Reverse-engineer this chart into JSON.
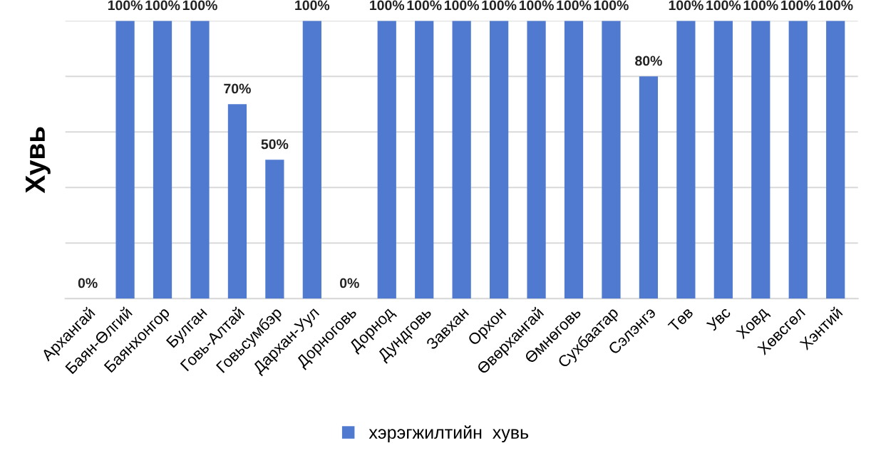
{
  "chart_data": {
    "type": "bar",
    "ylabel": "Хувь",
    "categories": [
      "Архангай",
      "Баян-Өлгий",
      "Баянхонгор",
      "Булган",
      "Говь-Алтай",
      "Говьсумбэр",
      "Дархан-Уул",
      "Дорноговь",
      "Дорнод",
      "Дундговь",
      "Завхан",
      "Орхон",
      "Өвөрхангай",
      "Өмнөговь",
      "Сухбаатар",
      "Сэлэнгэ",
      "Төв",
      "Увс",
      "Ховд",
      "Хөвсгөл",
      "Хэнтий"
    ],
    "series": [
      {
        "name": "хэрэгжилтийн  хувь",
        "color": "#4f7ad0",
        "values": [
          0,
          100,
          100,
          100,
          70,
          50,
          100,
          0,
          100,
          100,
          100,
          100,
          100,
          100,
          100,
          80,
          100,
          100,
          100,
          100,
          100
        ],
        "value_labels": [
          "0%",
          "100%",
          "100%",
          "100%",
          "70%",
          "50%",
          "100%",
          "0%",
          "100%",
          "100%",
          "100%",
          "100%",
          "100%",
          "100%",
          "100%",
          "80%",
          "100%",
          "100%",
          "100%",
          "100%",
          "100%"
        ]
      }
    ],
    "ylim": [
      0,
      100
    ],
    "yticks": [
      {
        "value": 0,
        "label": null
      },
      {
        "value": 20,
        "label": null
      },
      {
        "value": 40,
        "label": null
      },
      {
        "value": 60,
        "label": null
      },
      {
        "value": 80,
        "label": null
      },
      {
        "value": 100,
        "label": null
      }
    ],
    "grid": "y",
    "legend": "bottom"
  }
}
